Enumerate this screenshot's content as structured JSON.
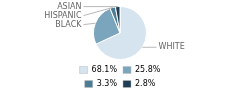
{
  "chart_data": {
    "type": "pie",
    "categories": [
      "WHITE",
      "BLACK",
      "HISPANIC",
      "ASIAN"
    ],
    "values": [
      68.1,
      25.8,
      3.3,
      2.8
    ],
    "value_labels": [
      "68.1%",
      "25.8%",
      "3.3%",
      "2.8%"
    ],
    "colors": [
      "#d6e4ef",
      "#7ba5bc",
      "#4d7d96",
      "#1e3f55"
    ],
    "legend": "bottom"
  }
}
